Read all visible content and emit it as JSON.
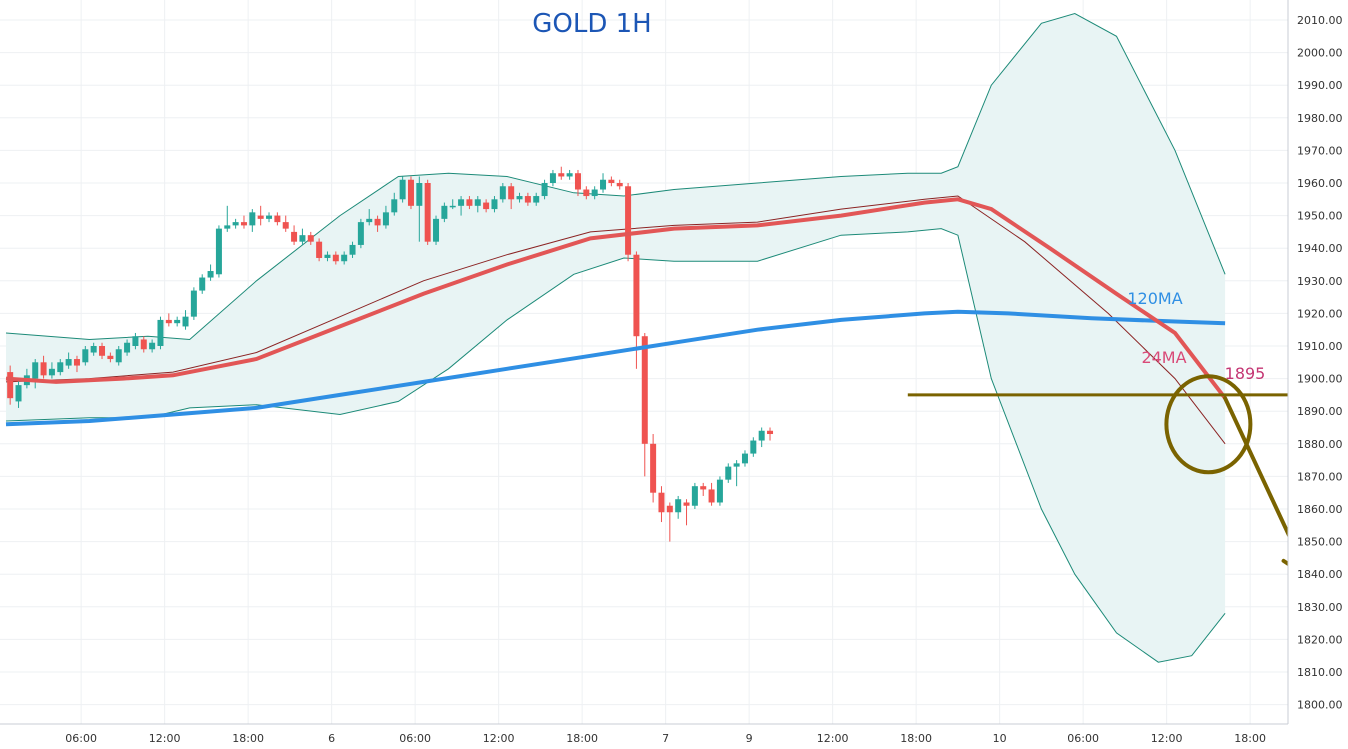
{
  "chart_data": {
    "type": "candlestick",
    "title": "GOLD 1H",
    "ylim": [
      1795,
      2015
    ],
    "xlim": [
      0,
      160
    ],
    "grid": true,
    "y_ticks": [
      "2010.00",
      "2000.00",
      "1990.00",
      "1980.00",
      "1970.00",
      "1960.00",
      "1950.00",
      "1940.00",
      "1930.00",
      "1920.00",
      "1910.00",
      "1900.00",
      "1890.00",
      "1880.00",
      "1870.00",
      "1860.00",
      "1850.00",
      "1840.00",
      "1830.00",
      "1820.00",
      "1810.00",
      "1800.00"
    ],
    "x_ticks": [
      {
        "label": "06:00",
        "x": 9
      },
      {
        "label": "12:00",
        "x": 19
      },
      {
        "label": "18:00",
        "x": 29
      },
      {
        "label": "6",
        "x": 39
      },
      {
        "label": "06:00",
        "x": 49
      },
      {
        "label": "12:00",
        "x": 59
      },
      {
        "label": "18:00",
        "x": 69
      },
      {
        "label": "7",
        "x": 79
      },
      {
        "label": "9",
        "x": 89
      },
      {
        "label": "12:00",
        "x": 99
      },
      {
        "label": "18:00",
        "x": 109
      },
      {
        "label": "10",
        "x": 119
      },
      {
        "label": "06:00",
        "x": 129
      },
      {
        "label": "12:00",
        "x": 139
      },
      {
        "label": "18:00",
        "x": 149
      }
    ],
    "candles": [
      [
        1902,
        1894,
        1904,
        1892
      ],
      [
        1893,
        1898,
        1900,
        1891
      ],
      [
        1898,
        1901,
        1903,
        1897
      ],
      [
        1900,
        1905,
        1906,
        1897
      ],
      [
        1905,
        1901,
        1907,
        1900
      ],
      [
        1901,
        1903,
        1905,
        1900
      ],
      [
        1902,
        1905,
        1906,
        1901
      ],
      [
        1904,
        1906,
        1908,
        1903
      ],
      [
        1906,
        1904,
        1907,
        1902
      ],
      [
        1905,
        1909,
        1910,
        1904
      ],
      [
        1908,
        1910,
        1911,
        1907
      ],
      [
        1910,
        1907,
        1911,
        1906
      ],
      [
        1907,
        1906,
        1908,
        1905
      ],
      [
        1905,
        1909,
        1910,
        1904
      ],
      [
        1908,
        1911,
        1912,
        1907
      ],
      [
        1910,
        1913,
        1914,
        1909
      ],
      [
        1912,
        1909,
        1913,
        1908
      ],
      [
        1909,
        1911,
        1912,
        1908
      ],
      [
        1910,
        1918,
        1919,
        1909
      ],
      [
        1918,
        1917,
        1920,
        1916
      ],
      [
        1917,
        1918,
        1919,
        1916
      ],
      [
        1916,
        1919,
        1921,
        1915
      ],
      [
        1919,
        1927,
        1928,
        1918
      ],
      [
        1927,
        1931,
        1932,
        1926
      ],
      [
        1931,
        1933,
        1935,
        1930
      ],
      [
        1932,
        1946,
        1947,
        1931
      ],
      [
        1946,
        1947,
        1953,
        1945
      ],
      [
        1947,
        1948,
        1949,
        1946
      ],
      [
        1948,
        1947,
        1950,
        1946
      ],
      [
        1947,
        1951,
        1952,
        1945
      ],
      [
        1950,
        1949,
        1953,
        1947
      ],
      [
        1949,
        1950,
        1951,
        1948
      ],
      [
        1950,
        1948,
        1951,
        1947
      ],
      [
        1948,
        1946,
        1950,
        1945
      ],
      [
        1945,
        1942,
        1947,
        1941
      ],
      [
        1942,
        1944,
        1946,
        1941
      ],
      [
        1944,
        1942,
        1945,
        1941
      ],
      [
        1942,
        1937,
        1943,
        1936
      ],
      [
        1937,
        1938,
        1939,
        1936
      ],
      [
        1938,
        1936,
        1939,
        1935
      ],
      [
        1936,
        1938,
        1939,
        1935
      ],
      [
        1938,
        1941,
        1942,
        1937
      ],
      [
        1941,
        1948,
        1949,
        1940
      ],
      [
        1948,
        1949,
        1952,
        1947
      ],
      [
        1949,
        1947,
        1950,
        1945
      ],
      [
        1947,
        1951,
        1953,
        1946
      ],
      [
        1951,
        1955,
        1957,
        1950
      ],
      [
        1955,
        1961,
        1962,
        1954
      ],
      [
        1961,
        1953,
        1962,
        1952
      ],
      [
        1953,
        1960,
        1962,
        1942
      ],
      [
        1960,
        1942,
        1961,
        1941
      ],
      [
        1942,
        1949,
        1950,
        1941
      ],
      [
        1949,
        1953,
        1954,
        1948
      ],
      [
        1953,
        1953,
        1955,
        1952
      ],
      [
        1953,
        1955,
        1956,
        1950
      ],
      [
        1955,
        1953,
        1956,
        1952
      ],
      [
        1953,
        1955,
        1956,
        1951
      ],
      [
        1954,
        1952,
        1955,
        1951
      ],
      [
        1952,
        1955,
        1956,
        1951
      ],
      [
        1955,
        1959,
        1960,
        1954
      ],
      [
        1959,
        1955,
        1960,
        1952
      ],
      [
        1955,
        1956,
        1957,
        1954
      ],
      [
        1956,
        1954,
        1957,
        1953
      ],
      [
        1954,
        1956,
        1957,
        1953
      ],
      [
        1956,
        1960,
        1961,
        1955
      ],
      [
        1960,
        1963,
        1964,
        1959
      ],
      [
        1963,
        1962,
        1965,
        1961
      ],
      [
        1962,
        1963,
        1964,
        1961
      ],
      [
        1963,
        1958,
        1964,
        1956
      ],
      [
        1958,
        1956,
        1959,
        1955
      ],
      [
        1956,
        1958,
        1959,
        1955
      ],
      [
        1958,
        1961,
        1963,
        1957
      ],
      [
        1961,
        1960,
        1962,
        1959
      ],
      [
        1960,
        1959,
        1961,
        1958
      ],
      [
        1959,
        1938,
        1960,
        1936
      ],
      [
        1938,
        1913,
        1939,
        1903
      ],
      [
        1913,
        1880,
        1914,
        1870
      ],
      [
        1880,
        1865,
        1883,
        1862
      ],
      [
        1865,
        1859,
        1867,
        1856
      ],
      [
        1861,
        1859,
        1862,
        1850
      ],
      [
        1859,
        1863,
        1864,
        1857
      ],
      [
        1862,
        1861,
        1863,
        1855
      ],
      [
        1861,
        1867,
        1868,
        1860
      ],
      [
        1867,
        1866,
        1868,
        1864
      ],
      [
        1866,
        1862,
        1868,
        1861
      ],
      [
        1862,
        1869,
        1870,
        1861
      ],
      [
        1869,
        1873,
        1874,
        1868
      ],
      [
        1873,
        1874,
        1875,
        1867
      ],
      [
        1874,
        1877,
        1878,
        1873
      ],
      [
        1877,
        1881,
        1882,
        1876
      ],
      [
        1881,
        1884,
        1885,
        1879
      ],
      [
        1884,
        1883,
        1885,
        1881
      ]
    ],
    "ma120": [
      [
        0,
        1886
      ],
      [
        10,
        1887
      ],
      [
        20,
        1889
      ],
      [
        30,
        1891
      ],
      [
        40,
        1895
      ],
      [
        50,
        1899
      ],
      [
        60,
        1903
      ],
      [
        70,
        1907
      ],
      [
        80,
        1911
      ],
      [
        90,
        1915
      ],
      [
        100,
        1918
      ],
      [
        110,
        1920
      ],
      [
        114,
        1920.5
      ],
      [
        120,
        1920
      ],
      [
        130,
        1918.5
      ],
      [
        140,
        1917.5
      ],
      [
        146,
        1917
      ]
    ],
    "ma24": [
      [
        0,
        1900
      ],
      [
        6,
        1899
      ],
      [
        14,
        1900
      ],
      [
        20,
        1901
      ],
      [
        30,
        1906
      ],
      [
        40,
        1916
      ],
      [
        50,
        1926
      ],
      [
        60,
        1935
      ],
      [
        70,
        1943
      ],
      [
        80,
        1946
      ],
      [
        90,
        1947
      ],
      [
        100,
        1950
      ],
      [
        110,
        1954
      ],
      [
        114,
        1955
      ],
      [
        118,
        1952
      ],
      [
        125,
        1940
      ],
      [
        133,
        1926
      ],
      [
        140,
        1914
      ],
      [
        146,
        1894
      ]
    ],
    "ma_thin": [
      [
        0,
        1899
      ],
      [
        10,
        1900
      ],
      [
        20,
        1902
      ],
      [
        30,
        1908
      ],
      [
        40,
        1919
      ],
      [
        50,
        1930
      ],
      [
        60,
        1938
      ],
      [
        70,
        1945
      ],
      [
        80,
        1947
      ],
      [
        90,
        1948
      ],
      [
        100,
        1952
      ],
      [
        110,
        1955
      ],
      [
        114,
        1956
      ],
      [
        122,
        1942
      ],
      [
        132,
        1920
      ],
      [
        140,
        1900
      ],
      [
        146,
        1880
      ]
    ],
    "bb_upper": [
      [
        0,
        1914
      ],
      [
        10,
        1912
      ],
      [
        17,
        1913
      ],
      [
        22,
        1912
      ],
      [
        30,
        1930
      ],
      [
        40,
        1950
      ],
      [
        47,
        1962
      ],
      [
        53,
        1963
      ],
      [
        60,
        1962
      ],
      [
        68,
        1957
      ],
      [
        74,
        1956
      ],
      [
        80,
        1958
      ],
      [
        90,
        1960
      ],
      [
        100,
        1962
      ],
      [
        108,
        1963
      ],
      [
        112,
        1963
      ],
      [
        114,
        1965
      ],
      [
        118,
        1990
      ],
      [
        124,
        2009
      ],
      [
        128,
        2012
      ],
      [
        133,
        2005
      ],
      [
        140,
        1970
      ],
      [
        146,
        1932
      ]
    ],
    "bb_lower": [
      [
        0,
        1887
      ],
      [
        10,
        1888
      ],
      [
        17,
        1888
      ],
      [
        22,
        1891
      ],
      [
        30,
        1892
      ],
      [
        40,
        1889
      ],
      [
        47,
        1893
      ],
      [
        53,
        1903
      ],
      [
        60,
        1918
      ],
      [
        68,
        1932
      ],
      [
        74,
        1937
      ],
      [
        80,
        1936
      ],
      [
        90,
        1936
      ],
      [
        100,
        1944
      ],
      [
        108,
        1945
      ],
      [
        112,
        1946
      ],
      [
        114,
        1944
      ],
      [
        118,
        1900
      ],
      [
        124,
        1860
      ],
      [
        128,
        1840
      ],
      [
        133,
        1822
      ],
      [
        138,
        1813
      ],
      [
        142,
        1815
      ],
      [
        146,
        1828
      ]
    ],
    "level": {
      "value": 1895,
      "label": "1895",
      "x_start": 108,
      "x_end": 158
    },
    "labels": {
      "ma120": "120MA",
      "ma24": "24MA"
    },
    "arrow": [
      [
        146,
        1894
      ],
      [
        156,
        1839
      ]
    ],
    "circle": {
      "x": 144,
      "y": 1886
    },
    "colors": {
      "up": "#26a69a",
      "down": "#ef5350",
      "ma120": "#2f8fe4",
      "ma24": "#e25656",
      "ma_thin": "#8b2323",
      "bb": "#1c8a78",
      "bb_fill": "#e8f4f4",
      "level": "#7a6300",
      "grid": "#eef0f3",
      "title": "#1c56b5",
      "label_ma120": "#2f8fe4",
      "label_ma24": "#d94a78",
      "label_level": "#c43573"
    }
  }
}
